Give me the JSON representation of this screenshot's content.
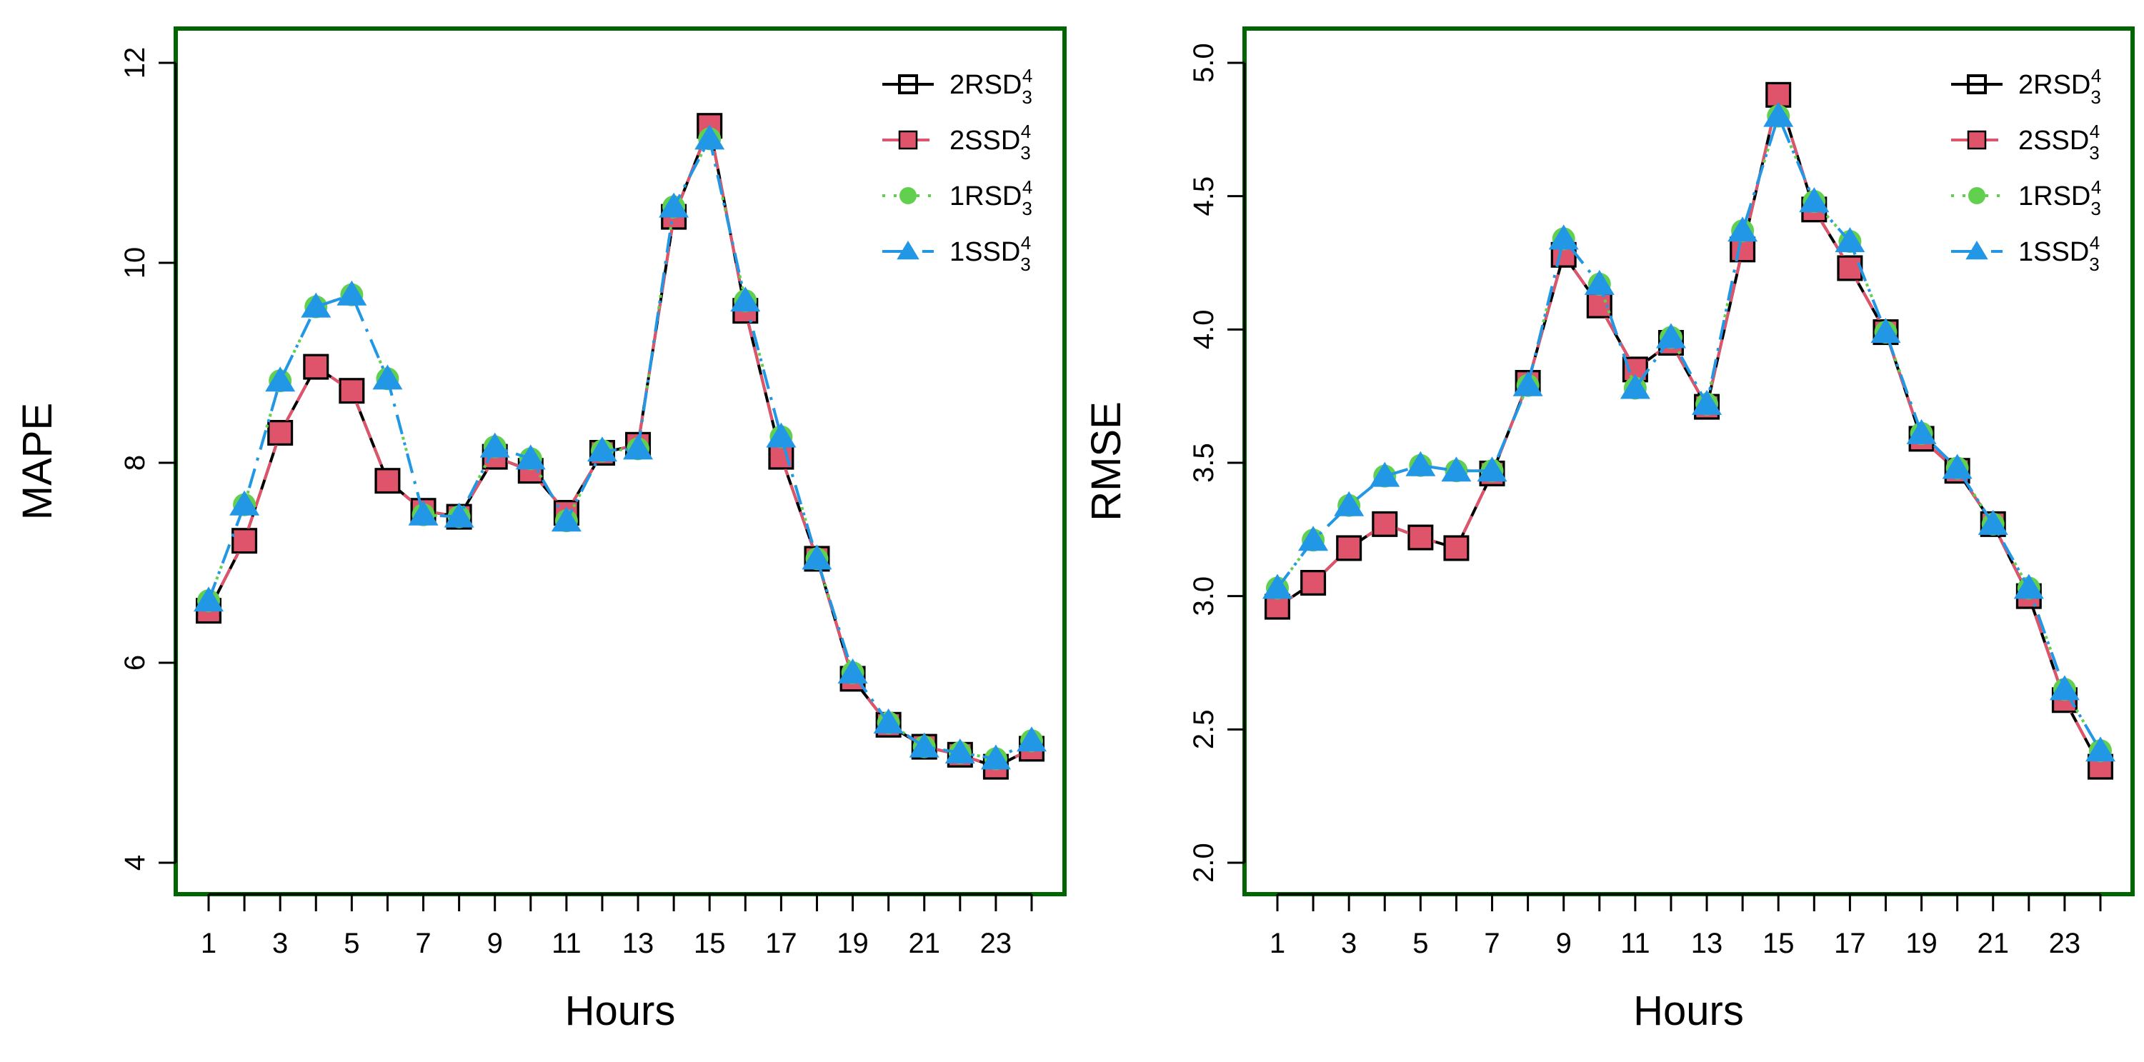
{
  "chart_data": [
    {
      "type": "line",
      "id": "mape",
      "title": "",
      "xlabel": "Hours",
      "ylabel": "MAPE",
      "x": [
        1,
        2,
        3,
        4,
        5,
        6,
        7,
        8,
        9,
        10,
        11,
        12,
        13,
        14,
        15,
        16,
        17,
        18,
        19,
        20,
        21,
        22,
        23,
        24
      ],
      "xticks": [
        1,
        3,
        5,
        7,
        9,
        11,
        13,
        15,
        17,
        19,
        21,
        23
      ],
      "xlim": [
        1,
        24
      ],
      "ylim": [
        4,
        12
      ],
      "yticks": [
        4,
        6,
        8,
        10,
        12
      ],
      "series": [
        {
          "name": "2RSD",
          "sup": "4",
          "sub": "3",
          "color": "#000000",
          "dash": "solid",
          "marker": "square-open",
          "values": [
            6.52,
            7.22,
            8.3,
            8.96,
            8.72,
            7.82,
            7.52,
            7.46,
            8.06,
            7.92,
            7.5,
            8.1,
            8.18,
            10.46,
            11.37,
            9.52,
            8.06,
            7.04,
            5.84,
            5.38,
            5.16,
            5.08,
            4.96,
            5.14
          ]
        },
        {
          "name": "2SSD",
          "sup": "4",
          "sub": "3",
          "color": "#DF536B",
          "dash": "dashed",
          "marker": "square",
          "values": [
            6.52,
            7.22,
            8.3,
            8.96,
            8.72,
            7.82,
            7.52,
            7.46,
            8.06,
            7.92,
            7.5,
            8.1,
            8.18,
            10.46,
            11.37,
            9.52,
            8.06,
            7.04,
            5.84,
            5.38,
            5.16,
            5.08,
            4.96,
            5.14
          ]
        },
        {
          "name": "1RSD",
          "sup": "4",
          "sub": "3",
          "color": "#61D04F",
          "dash": "dotted",
          "marker": "circle",
          "values": [
            6.62,
            7.58,
            8.82,
            9.56,
            9.68,
            8.84,
            7.48,
            7.46,
            8.16,
            8.04,
            7.42,
            8.12,
            8.14,
            10.56,
            11.24,
            9.62,
            8.26,
            7.04,
            5.9,
            5.4,
            5.16,
            5.1,
            5.04,
            5.22
          ]
        },
        {
          "name": "1SSD",
          "sup": "4",
          "sub": "3",
          "color": "#2297E6",
          "dash": "dashdot",
          "marker": "triangle",
          "values": [
            6.62,
            7.58,
            8.82,
            9.56,
            9.68,
            8.84,
            7.48,
            7.46,
            8.16,
            8.04,
            7.42,
            8.12,
            8.14,
            10.56,
            11.24,
            9.62,
            8.26,
            7.04,
            5.9,
            5.4,
            5.16,
            5.1,
            5.04,
            5.22
          ]
        }
      ]
    },
    {
      "type": "line",
      "id": "rmse",
      "title": "",
      "xlabel": "Hours",
      "ylabel": "RMSE",
      "x": [
        1,
        2,
        3,
        4,
        5,
        6,
        7,
        8,
        9,
        10,
        11,
        12,
        13,
        14,
        15,
        16,
        17,
        18,
        19,
        20,
        21,
        22,
        23,
        24
      ],
      "xticks": [
        1,
        3,
        5,
        7,
        9,
        11,
        13,
        15,
        17,
        19,
        21,
        23
      ],
      "xlim": [
        1,
        24
      ],
      "ylim": [
        2.0,
        5.0
      ],
      "yticks": [
        2.0,
        2.5,
        3.0,
        3.5,
        4.0,
        4.5,
        5.0
      ],
      "series": [
        {
          "name": "2RSD",
          "sup": "4",
          "sub": "3",
          "color": "#000000",
          "dash": "solid",
          "marker": "square-open",
          "values": [
            2.96,
            3.05,
            3.18,
            3.27,
            3.22,
            3.18,
            3.46,
            3.8,
            4.28,
            4.09,
            3.85,
            3.95,
            3.71,
            4.3,
            4.88,
            4.45,
            4.23,
            3.99,
            3.59,
            3.47,
            3.27,
            3.0,
            2.61,
            2.36
          ]
        },
        {
          "name": "2SSD",
          "sup": "4",
          "sub": "3",
          "color": "#DF536B",
          "dash": "dashed",
          "marker": "square",
          "values": [
            2.96,
            3.05,
            3.18,
            3.27,
            3.22,
            3.18,
            3.46,
            3.8,
            4.28,
            4.09,
            3.85,
            3.95,
            3.71,
            4.3,
            4.88,
            4.45,
            4.23,
            3.99,
            3.59,
            3.47,
            3.27,
            3.0,
            2.61,
            2.36
          ]
        },
        {
          "name": "1RSD",
          "sup": "4",
          "sub": "3",
          "color": "#61D04F",
          "dash": "dotted",
          "marker": "circle",
          "values": [
            3.03,
            3.21,
            3.34,
            3.45,
            3.49,
            3.47,
            3.47,
            3.79,
            4.34,
            4.17,
            3.78,
            3.97,
            3.72,
            4.37,
            4.8,
            4.48,
            4.33,
            3.99,
            3.61,
            3.48,
            3.27,
            3.03,
            2.65,
            2.42
          ]
        },
        {
          "name": "1SSD",
          "sup": "4",
          "sub": "3",
          "color": "#2297E6",
          "dash": "dashdot",
          "marker": "triangle",
          "values": [
            3.03,
            3.21,
            3.34,
            3.45,
            3.49,
            3.47,
            3.47,
            3.79,
            4.34,
            4.17,
            3.78,
            3.97,
            3.72,
            4.37,
            4.8,
            4.48,
            4.33,
            3.99,
            3.61,
            3.48,
            3.27,
            3.03,
            2.65,
            2.42
          ]
        }
      ]
    }
  ],
  "style": {
    "frame_color": "#006400",
    "axis_color": "#000000"
  }
}
